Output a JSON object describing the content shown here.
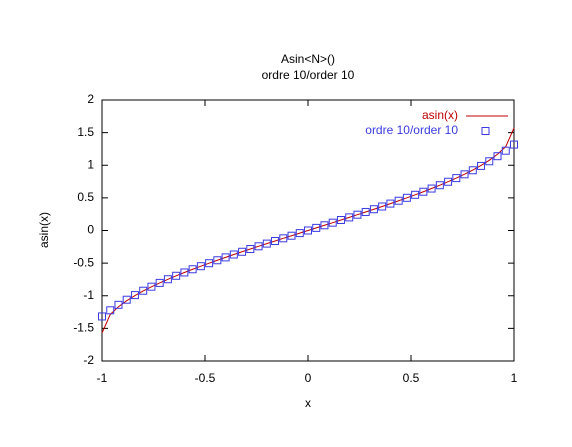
{
  "chart_data": {
    "type": "line",
    "title": "Asin<N>()",
    "subtitle": "ordre 10/order 10",
    "x_label": "x",
    "y_label": "asin(x)",
    "x": [
      -1,
      -0.96,
      -0.92,
      -0.88,
      -0.84,
      -0.8,
      -0.76,
      -0.72,
      -0.68,
      -0.64,
      -0.6,
      -0.56,
      -0.52,
      -0.48,
      -0.44,
      -0.4,
      -0.36,
      -0.32,
      -0.28,
      -0.24,
      -0.2,
      -0.16,
      -0.12,
      -0.08,
      -0.04,
      0,
      0.04,
      0.08,
      0.12,
      0.16,
      0.2,
      0.24,
      0.28,
      0.32,
      0.36,
      0.4,
      0.44,
      0.48,
      0.52,
      0.56,
      0.6,
      0.64,
      0.68,
      0.72,
      0.76,
      0.8,
      0.84,
      0.88,
      0.92,
      0.96,
      1
    ],
    "series": [
      {
        "name": "asin(x)",
        "color": "#c00000",
        "style": "line",
        "values": [
          -1.571,
          -1.287,
          -1.168,
          -1.076,
          -0.997,
          -0.927,
          -0.863,
          -0.804,
          -0.748,
          -0.694,
          -0.644,
          -0.594,
          -0.547,
          -0.501,
          -0.456,
          -0.412,
          -0.368,
          -0.326,
          -0.284,
          -0.242,
          -0.201,
          -0.161,
          -0.12,
          -0.08,
          -0.04,
          0,
          0.04,
          0.08,
          0.12,
          0.161,
          0.201,
          0.242,
          0.284,
          0.326,
          0.368,
          0.412,
          0.456,
          0.501,
          0.547,
          0.594,
          0.644,
          0.694,
          0.748,
          0.804,
          0.863,
          0.927,
          0.997,
          1.076,
          1.168,
          1.287,
          1.571
        ]
      },
      {
        "name": "ordre 10/order 10",
        "color": "#3a3ae0",
        "style": "square",
        "values": [
          -1.317,
          -1.223,
          -1.139,
          -1.061,
          -0.99,
          -0.923,
          -0.861,
          -0.803,
          -0.747,
          -0.694,
          -0.643,
          -0.594,
          -0.547,
          -0.501,
          -0.456,
          -0.412,
          -0.368,
          -0.326,
          -0.284,
          -0.242,
          -0.201,
          -0.161,
          -0.12,
          -0.08,
          -0.04,
          0,
          0.04,
          0.08,
          0.12,
          0.161,
          0.201,
          0.242,
          0.284,
          0.326,
          0.368,
          0.412,
          0.456,
          0.501,
          0.547,
          0.594,
          0.643,
          0.694,
          0.747,
          0.803,
          0.861,
          0.923,
          0.99,
          1.061,
          1.139,
          1.223,
          1.317
        ]
      }
    ],
    "xlim": [
      -1,
      1
    ],
    "xticks": [
      -1,
      -0.5,
      0,
      0.5,
      1
    ],
    "ylim": [
      -2,
      2
    ],
    "yticks": [
      -2,
      -1.5,
      -1,
      -0.5,
      0,
      0.5,
      1,
      1.5,
      2
    ],
    "grid": false,
    "legend": "top-right"
  }
}
